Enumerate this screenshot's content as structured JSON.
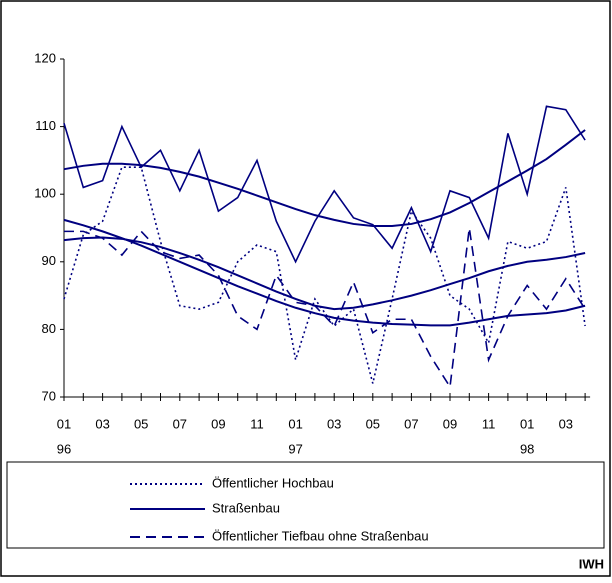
{
  "chart_data": {
    "type": "line",
    "source": "IWH",
    "categories": [
      "01",
      null,
      "03",
      null,
      "05",
      null,
      "07",
      null,
      "09",
      null,
      "11",
      null,
      "01",
      null,
      "03",
      null,
      "05",
      null,
      "07",
      null,
      "09",
      null,
      "11",
      null,
      "01",
      null,
      "03",
      null
    ],
    "years": [
      "96",
      null,
      null,
      null,
      null,
      null,
      null,
      null,
      null,
      null,
      null,
      null,
      "97",
      null,
      null,
      null,
      null,
      null,
      null,
      null,
      null,
      null,
      null,
      null,
      "98",
      null,
      null,
      null
    ],
    "ylim": [
      70,
      120
    ],
    "yticks": [
      70,
      80,
      90,
      100,
      110,
      120
    ],
    "series": [
      {
        "name": "Öffentlicher Hochbau",
        "color": "#000080",
        "dash": "dotted",
        "values": [
          84.5,
          94,
          96,
          104,
          104,
          93,
          83.5,
          83,
          84,
          90,
          92.5,
          91.5,
          75.5,
          84.5,
          80.5,
          83,
          72,
          84.5,
          97.5,
          93.5,
          85,
          83,
          78,
          93,
          92,
          93,
          101,
          80.5
        ],
        "trend": [
          93.2,
          93.5,
          93.6,
          93.4,
          92.9,
          92.2,
          91.3,
          90.3,
          89.2,
          88.0,
          86.8,
          85.6,
          84.5,
          83.5,
          83.0,
          83.2,
          83.7,
          84.3,
          85.0,
          85.8,
          86.7,
          87.6,
          88.6,
          89.4,
          90.0,
          90.3,
          90.7,
          91.3
        ]
      },
      {
        "name": "Straßenbau",
        "color": "#000080",
        "dash": "solid",
        "values": [
          110.5,
          101,
          102,
          110,
          104,
          106.5,
          100.5,
          106.5,
          97.5,
          99.5,
          105,
          96,
          90,
          96,
          100.5,
          96.5,
          95.5,
          92,
          98,
          91.5,
          100.5,
          99.5,
          93.5,
          109,
          100,
          113,
          112.5,
          108
        ],
        "trend": [
          103.7,
          104.2,
          104.5,
          104.5,
          104.3,
          103.9,
          103.3,
          102.6,
          101.7,
          100.8,
          99.8,
          98.8,
          97.8,
          96.9,
          96.2,
          95.6,
          95.3,
          95.3,
          95.6,
          96.3,
          97.3,
          98.7,
          100.3,
          101.9,
          103.5,
          105.2,
          107.3,
          109.5
        ]
      },
      {
        "name": "Öffentlicher Tiefbau ohne Straßenbau",
        "color": "#000080",
        "dash": "dashed",
        "values": [
          94.5,
          94.5,
          93.5,
          91,
          94.5,
          91.5,
          90.5,
          91,
          88,
          82,
          80,
          88,
          84,
          83.5,
          80.5,
          87,
          79.5,
          81.5,
          81.5,
          76,
          71.5,
          95,
          75.5,
          82,
          86.5,
          83,
          87.5,
          83
        ],
        "trend": [
          96.2,
          95.4,
          94.5,
          93.5,
          92.4,
          91.2,
          90.0,
          88.8,
          87.6,
          86.4,
          85.3,
          84.2,
          83.2,
          82.4,
          81.7,
          81.3,
          81.0,
          80.8,
          80.7,
          80.6,
          80.6,
          81.0,
          81.5,
          82.0,
          82.2,
          82.4,
          82.8,
          83.5
        ]
      }
    ]
  }
}
